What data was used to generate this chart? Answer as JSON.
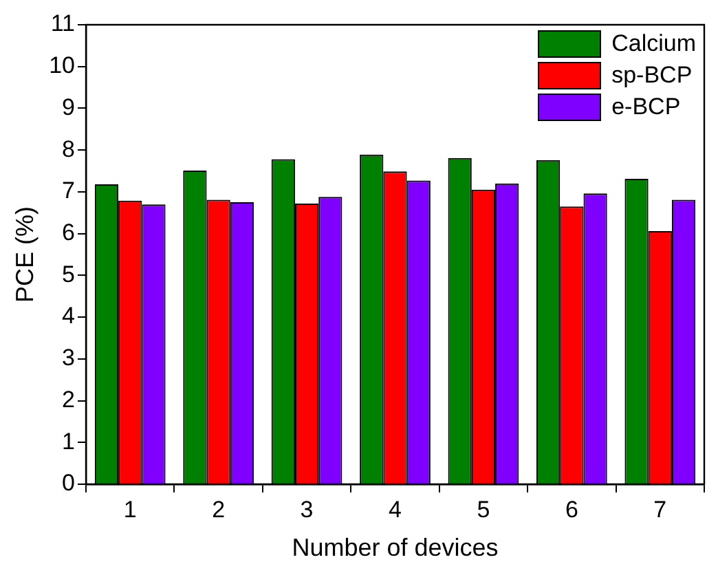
{
  "chart_data": {
    "type": "bar",
    "xlabel": "Number of devices",
    "ylabel": "PCE (%)",
    "categories": [
      "1",
      "2",
      "3",
      "4",
      "5",
      "6",
      "7"
    ],
    "series": [
      {
        "name": "Calcium",
        "color": "#008000",
        "values": [
          7.18,
          7.51,
          7.78,
          7.89,
          7.81,
          7.76,
          7.31
        ]
      },
      {
        "name": "sp-BCP",
        "color": "#ff0000",
        "values": [
          6.79,
          6.81,
          6.72,
          7.49,
          7.05,
          6.65,
          6.06
        ]
      },
      {
        "name": "e-BCP",
        "color": "#8000ff",
        "values": [
          6.7,
          6.75,
          6.88,
          7.27,
          7.2,
          6.96,
          6.81
        ]
      }
    ],
    "ylim": [
      0,
      11
    ],
    "yticks": [
      0,
      1,
      2,
      3,
      4,
      5,
      6,
      7,
      8,
      9,
      10,
      11
    ],
    "grid": false,
    "legend": "top right"
  }
}
